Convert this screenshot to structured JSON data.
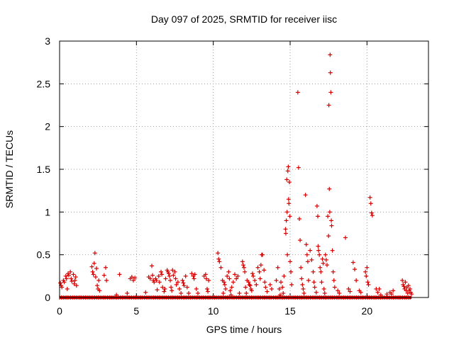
{
  "chart_data": {
    "type": "scatter",
    "title": "Day 097 of 2025, SRMTID for receiver iisc",
    "xlabel": "GPS time / hours",
    "ylabel": "SRMTID / TECUs",
    "xlim": [
      0,
      24
    ],
    "ylim": [
      0,
      3
    ],
    "xticks": [
      0,
      5,
      10,
      15,
      20
    ],
    "yticks": [
      0,
      0.5,
      1,
      1.5,
      2,
      2.5,
      3
    ],
    "xtick_labels": [
      "0",
      "5",
      "10",
      "15",
      "20"
    ],
    "ytick_labels": [
      "0",
      "0.5",
      "1",
      "1.5",
      "2",
      "2.5",
      "3"
    ],
    "grid": true,
    "marker": "+",
    "color": "#d60000",
    "baseline_segments": [
      [
        0.0,
        22.9
      ]
    ],
    "series": [
      {
        "name": "SRMTID",
        "points": [
          [
            0.05,
            0.17
          ],
          [
            0.1,
            0.14
          ],
          [
            0.15,
            0.12
          ],
          [
            0.25,
            0.2
          ],
          [
            0.3,
            0.18
          ],
          [
            0.4,
            0.25
          ],
          [
            0.45,
            0.22
          ],
          [
            0.5,
            0.1
          ],
          [
            0.55,
            0.28
          ],
          [
            0.6,
            0.26
          ],
          [
            0.7,
            0.3
          ],
          [
            0.75,
            0.22
          ],
          [
            0.8,
            0.19
          ],
          [
            0.9,
            0.27
          ],
          [
            0.95,
            0.16
          ],
          [
            1.0,
            0.2
          ],
          [
            1.05,
            0.24
          ],
          [
            1.1,
            0.14
          ],
          [
            2.1,
            0.36
          ],
          [
            2.15,
            0.3
          ],
          [
            2.2,
            0.27
          ],
          [
            2.25,
            0.4
          ],
          [
            2.3,
            0.52
          ],
          [
            2.35,
            0.24
          ],
          [
            2.4,
            0.34
          ],
          [
            2.45,
            0.14
          ],
          [
            2.5,
            0.1
          ],
          [
            2.55,
            0.2
          ],
          [
            2.6,
            0.08
          ],
          [
            2.9,
            0.26
          ],
          [
            3.0,
            0.35
          ],
          [
            3.05,
            0.2
          ],
          [
            3.7,
            0.03
          ],
          [
            3.9,
            0.27
          ],
          [
            4.4,
            0.05
          ],
          [
            4.6,
            0.22
          ],
          [
            4.7,
            0.24
          ],
          [
            4.8,
            0.2
          ],
          [
            4.9,
            0.23
          ],
          [
            5.6,
            0.06
          ],
          [
            5.8,
            0.24
          ],
          [
            5.9,
            0.22
          ],
          [
            6.0,
            0.37
          ],
          [
            6.05,
            0.26
          ],
          [
            6.1,
            0.2
          ],
          [
            6.15,
            0.18
          ],
          [
            6.25,
            0.22
          ],
          [
            6.3,
            0.2
          ],
          [
            6.35,
            0.09
          ],
          [
            6.45,
            0.25
          ],
          [
            6.5,
            0.18
          ],
          [
            6.6,
            0.3
          ],
          [
            6.65,
            0.27
          ],
          [
            6.7,
            0.12
          ],
          [
            6.8,
            0.07
          ],
          [
            6.85,
            0.1
          ],
          [
            6.9,
            0.22
          ],
          [
            7.0,
            0.32
          ],
          [
            7.05,
            0.3
          ],
          [
            7.1,
            0.28
          ],
          [
            7.15,
            0.25
          ],
          [
            7.2,
            0.2
          ],
          [
            7.25,
            0.12
          ],
          [
            7.3,
            0.08
          ],
          [
            7.35,
            0.32
          ],
          [
            7.4,
            0.26
          ],
          [
            7.5,
            0.3
          ],
          [
            7.55,
            0.22
          ],
          [
            7.6,
            0.15
          ],
          [
            7.7,
            0.18
          ],
          [
            7.8,
            0.1
          ],
          [
            7.9,
            0.05
          ],
          [
            8.0,
            0.2
          ],
          [
            8.05,
            0.17
          ],
          [
            8.1,
            0.14
          ],
          [
            8.2,
            0.25
          ],
          [
            8.3,
            0.12
          ],
          [
            8.4,
            0.05
          ],
          [
            8.6,
            0.28
          ],
          [
            8.7,
            0.25
          ],
          [
            8.75,
            0.22
          ],
          [
            8.8,
            0.27
          ],
          [
            8.9,
            0.1
          ],
          [
            9.0,
            0.05
          ],
          [
            9.4,
            0.25
          ],
          [
            9.5,
            0.27
          ],
          [
            9.55,
            0.22
          ],
          [
            9.6,
            0.1
          ],
          [
            9.65,
            0.07
          ],
          [
            9.7,
            0.2
          ],
          [
            10.3,
            0.52
          ],
          [
            10.35,
            0.45
          ],
          [
            10.4,
            0.42
          ],
          [
            10.5,
            0.35
          ],
          [
            10.6,
            0.2
          ],
          [
            10.65,
            0.05
          ],
          [
            10.7,
            0.18
          ],
          [
            10.75,
            0.15
          ],
          [
            10.8,
            0.1
          ],
          [
            10.9,
            0.25
          ],
          [
            11.0,
            0.3
          ],
          [
            11.05,
            0.22
          ],
          [
            11.1,
            0.08
          ],
          [
            11.15,
            0.03
          ],
          [
            11.2,
            0.12
          ],
          [
            11.3,
            0.18
          ],
          [
            11.4,
            0.27
          ],
          [
            11.5,
            0.22
          ],
          [
            11.6,
            0.25
          ],
          [
            11.7,
            0.05
          ],
          [
            11.9,
            0.42
          ],
          [
            11.95,
            0.38
          ],
          [
            12.0,
            0.35
          ],
          [
            12.05,
            0.3
          ],
          [
            12.1,
            0.12
          ],
          [
            12.15,
            0.05
          ],
          [
            12.2,
            0.2
          ],
          [
            12.3,
            0.18
          ],
          [
            12.35,
            0.15
          ],
          [
            12.4,
            0.14
          ],
          [
            12.45,
            0.1
          ],
          [
            12.5,
            0.08
          ],
          [
            12.55,
            0.28
          ],
          [
            12.6,
            0.25
          ],
          [
            12.7,
            0.2
          ],
          [
            12.8,
            0.15
          ],
          [
            12.9,
            0.35
          ],
          [
            13.0,
            0.3
          ],
          [
            13.05,
            0.22
          ],
          [
            13.1,
            0.38
          ],
          [
            13.15,
            0.5
          ],
          [
            13.2,
            0.5
          ],
          [
            13.3,
            0.32
          ],
          [
            13.35,
            0.18
          ],
          [
            13.4,
            0.12
          ],
          [
            13.5,
            0.07
          ],
          [
            13.7,
            0.15
          ],
          [
            13.8,
            0.1
          ],
          [
            14.1,
            0.2
          ],
          [
            14.2,
            0.35
          ],
          [
            14.3,
            0.1
          ],
          [
            14.35,
            0.03
          ],
          [
            14.4,
            0.18
          ],
          [
            14.5,
            0.12
          ],
          [
            14.55,
            0.05
          ],
          [
            14.6,
            0.25
          ],
          [
            14.7,
            0.8
          ],
          [
            14.72,
            0.75
          ],
          [
            14.75,
            0.9
          ],
          [
            14.78,
            1.38
          ],
          [
            14.8,
            1.0
          ],
          [
            14.82,
            0.5
          ],
          [
            14.85,
            1.48
          ],
          [
            14.88,
            1.53
          ],
          [
            14.9,
            1.15
          ],
          [
            14.92,
            1.1
          ],
          [
            14.95,
            1.35
          ],
          [
            14.98,
            0.95
          ],
          [
            15.0,
            0.42
          ],
          [
            15.05,
            0.3
          ],
          [
            15.1,
            0.15
          ],
          [
            15.5,
            2.4
          ],
          [
            15.55,
            1.52
          ],
          [
            15.6,
            0.92
          ],
          [
            15.65,
            0.67
          ],
          [
            15.7,
            0.35
          ],
          [
            15.75,
            0.22
          ],
          [
            15.8,
            0.15
          ],
          [
            15.85,
            0.1
          ],
          [
            15.9,
            0.05
          ],
          [
            16.0,
            1.2
          ],
          [
            16.05,
            0.62
          ],
          [
            16.1,
            0.5
          ],
          [
            16.15,
            0.42
          ],
          [
            16.2,
            0.2
          ],
          [
            16.3,
            0.55
          ],
          [
            16.4,
            0.44
          ],
          [
            16.5,
            0.3
          ],
          [
            16.55,
            0.18
          ],
          [
            16.6,
            0.12
          ],
          [
            16.7,
            0.06
          ],
          [
            16.75,
            1.07
          ],
          [
            16.8,
            0.95
          ],
          [
            16.82,
            0.6
          ],
          [
            16.85,
            0.55
          ],
          [
            16.9,
            0.5
          ],
          [
            16.95,
            0.35
          ],
          [
            17.0,
            0.3
          ],
          [
            17.05,
            0.18
          ],
          [
            17.1,
            0.45
          ],
          [
            17.15,
            0.4
          ],
          [
            17.2,
            0.1
          ],
          [
            17.25,
            0.05
          ],
          [
            17.3,
            0.5
          ],
          [
            17.35,
            0.44
          ],
          [
            17.4,
            0.38
          ],
          [
            17.45,
            0.95
          ],
          [
            17.5,
            0.72
          ],
          [
            17.52,
            2.25
          ],
          [
            17.55,
            1.27
          ],
          [
            17.58,
            1.0
          ],
          [
            17.6,
            2.84
          ],
          [
            17.62,
            2.63
          ],
          [
            17.65,
            2.4
          ],
          [
            17.68,
            0.9
          ],
          [
            17.7,
            0.84
          ],
          [
            17.75,
            0.55
          ],
          [
            17.8,
            0.3
          ],
          [
            17.85,
            0.2
          ],
          [
            17.9,
            0.12
          ],
          [
            18.1,
            0.08
          ],
          [
            18.2,
            0.05
          ],
          [
            18.6,
            0.7
          ],
          [
            18.8,
            0.1
          ],
          [
            18.9,
            0.07
          ],
          [
            19.1,
            0.41
          ],
          [
            19.2,
            0.33
          ],
          [
            19.3,
            0.2
          ],
          [
            19.5,
            0.08
          ],
          [
            19.6,
            0.06
          ],
          [
            19.9,
            0.3
          ],
          [
            19.95,
            0.25
          ],
          [
            20.0,
            0.35
          ],
          [
            20.05,
            0.18
          ],
          [
            20.1,
            0.15
          ],
          [
            20.2,
            1.17
          ],
          [
            20.25,
            1.1
          ],
          [
            20.3,
            0.99
          ],
          [
            20.35,
            0.96
          ],
          [
            20.6,
            0.1
          ],
          [
            20.7,
            0.06
          ],
          [
            20.8,
            0.1
          ],
          [
            20.9,
            0.03
          ],
          [
            21.3,
            0.04
          ],
          [
            21.5,
            0.06
          ],
          [
            21.6,
            0.04
          ],
          [
            21.7,
            0.08
          ],
          [
            22.3,
            0.2
          ],
          [
            22.35,
            0.15
          ],
          [
            22.4,
            0.13
          ],
          [
            22.45,
            0.1
          ],
          [
            22.5,
            0.18
          ],
          [
            22.55,
            0.08
          ],
          [
            22.6,
            0.12
          ],
          [
            22.65,
            0.05
          ],
          [
            22.7,
            0.14
          ],
          [
            22.75,
            0.08
          ],
          [
            22.8,
            0.1
          ],
          [
            22.85,
            0.06
          ],
          [
            22.9,
            0.04
          ]
        ]
      }
    ]
  }
}
